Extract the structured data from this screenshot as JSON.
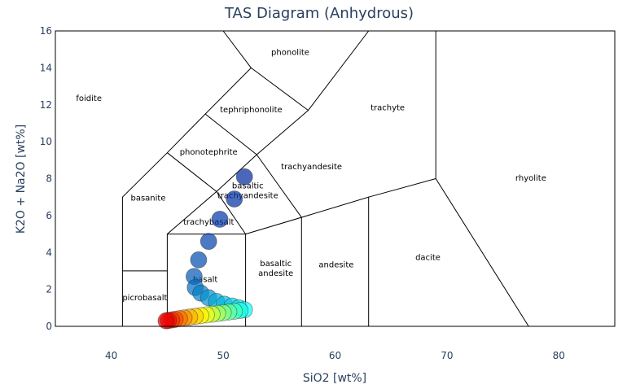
{
  "chart_data": {
    "type": "scatter",
    "title": "TAS Diagram (Anhydrous)",
    "xlabel": "SiO2 [wt%]",
    "ylabel": "K2O + Na2O [wt%]",
    "xlim": [
      35,
      85
    ],
    "ylim": [
      0,
      16
    ],
    "x_ticks": [
      40,
      50,
      60,
      70,
      80
    ],
    "y_ticks": [
      0,
      2,
      4,
      6,
      8,
      10,
      12,
      14,
      16
    ],
    "grid": false,
    "legend": "none",
    "colorscale": "jet",
    "regions": [
      {
        "name": "foidite",
        "label": "foidite",
        "x": 38,
        "y": 12.2
      },
      {
        "name": "phonolite",
        "label": "phonolite",
        "x": 56,
        "y": 14.7
      },
      {
        "name": "tephriphonolite",
        "label": "tephriphonolite",
        "x": 52.5,
        "y": 11.6
      },
      {
        "name": "trachyte",
        "label": "trachyte",
        "x": 64.7,
        "y": 11.7
      },
      {
        "name": "phonotephrite",
        "label": "phonotephrite",
        "x": 48.7,
        "y": 9.3
      },
      {
        "name": "trachyandesite",
        "label": "trachyandesite",
        "x": 57.9,
        "y": 8.5
      },
      {
        "name": "rhyolite",
        "label": "rhyolite",
        "x": 77.5,
        "y": 7.9
      },
      {
        "name": "basanite",
        "label": "basanite",
        "x": 43.3,
        "y": 6.8
      },
      {
        "name": "basaltic-trachyandesite",
        "label": "basaltic\ntrachyandesite",
        "x": 52.2,
        "y": 7.2
      },
      {
        "name": "trachybasalt",
        "label": "trachybasalt",
        "x": 48.7,
        "y": 5.5
      },
      {
        "name": "andesite",
        "label": "andesite",
        "x": 60.1,
        "y": 3.2
      },
      {
        "name": "dacite",
        "label": "dacite",
        "x": 68.3,
        "y": 3.6
      },
      {
        "name": "basaltic-andesite",
        "label": "basaltic\nandesite",
        "x": 54.7,
        "y": 3.0
      },
      {
        "name": "basalt",
        "label": "basalt",
        "x": 48.4,
        "y": 2.4
      },
      {
        "name": "picrobasalt",
        "label": "picrobasalt",
        "x": 43.0,
        "y": 1.4
      }
    ],
    "boundaries": [
      [
        [
          41,
          0
        ],
        [
          41,
          7
        ],
        [
          45,
          9.4
        ],
        [
          48.4,
          11.5
        ],
        [
          52.5,
          14
        ],
        [
          57.6,
          11.7
        ],
        [
          63,
          16
        ]
      ],
      [
        [
          41,
          3
        ],
        [
          45,
          3
        ],
        [
          45,
          0
        ]
      ],
      [
        [
          45,
          3
        ],
        [
          45,
          5
        ],
        [
          49.4,
          7.3
        ],
        [
          53,
          9.3
        ],
        [
          57.6,
          11.7
        ]
      ],
      [
        [
          45,
          5
        ],
        [
          52,
          5
        ],
        [
          52,
          0
        ]
      ],
      [
        [
          52,
          5
        ],
        [
          57,
          5.9
        ],
        [
          57,
          0
        ]
      ],
      [
        [
          57,
          5.9
        ],
        [
          63,
          7
        ],
        [
          63,
          0
        ]
      ],
      [
        [
          63,
          7
        ],
        [
          69,
          8
        ],
        [
          69,
          16
        ]
      ],
      [
        [
          69,
          8
        ],
        [
          77.3,
          0
        ]
      ],
      [
        [
          45,
          9.4
        ],
        [
          49.4,
          7.3
        ]
      ],
      [
        [
          48.4,
          11.5
        ],
        [
          53,
          9.3
        ]
      ],
      [
        [
          52.5,
          14
        ],
        [
          50,
          16
        ]
      ],
      [
        [
          49.4,
          7.3
        ],
        [
          52,
          5
        ]
      ],
      [
        [
          53,
          9.3
        ],
        [
          57,
          5.9
        ]
      ]
    ],
    "points": [
      {
        "x": 51.9,
        "y": 8.1,
        "t": 0.0
      },
      {
        "x": 51.0,
        "y": 6.9,
        "t": 0.02
      },
      {
        "x": 49.7,
        "y": 5.8,
        "t": 0.04
      },
      {
        "x": 48.7,
        "y": 4.6,
        "t": 0.06
      },
      {
        "x": 47.8,
        "y": 3.6,
        "t": 0.08
      },
      {
        "x": 47.4,
        "y": 2.7,
        "t": 0.1
      },
      {
        "x": 47.5,
        "y": 2.1,
        "t": 0.13
      },
      {
        "x": 48.0,
        "y": 1.8,
        "t": 0.16
      },
      {
        "x": 48.7,
        "y": 1.55,
        "t": 0.19
      },
      {
        "x": 49.4,
        "y": 1.35,
        "t": 0.22
      },
      {
        "x": 50.1,
        "y": 1.2,
        "t": 0.25
      },
      {
        "x": 50.8,
        "y": 1.1,
        "t": 0.28
      },
      {
        "x": 51.4,
        "y": 1.0,
        "t": 0.31
      },
      {
        "x": 51.9,
        "y": 0.9,
        "t": 0.35
      },
      {
        "x": 51.5,
        "y": 0.86,
        "t": 0.4
      },
      {
        "x": 51.0,
        "y": 0.82,
        "t": 0.44
      },
      {
        "x": 50.5,
        "y": 0.78,
        "t": 0.48
      },
      {
        "x": 50.0,
        "y": 0.74,
        "t": 0.52
      },
      {
        "x": 49.5,
        "y": 0.7,
        "t": 0.56
      },
      {
        "x": 49.0,
        "y": 0.66,
        "t": 0.6
      },
      {
        "x": 48.5,
        "y": 0.62,
        "t": 0.64
      },
      {
        "x": 48.0,
        "y": 0.58,
        "t": 0.68
      },
      {
        "x": 47.5,
        "y": 0.54,
        "t": 0.72
      },
      {
        "x": 47.0,
        "y": 0.5,
        "t": 0.76
      },
      {
        "x": 46.5,
        "y": 0.46,
        "t": 0.8
      },
      {
        "x": 46.1,
        "y": 0.42,
        "t": 0.84
      },
      {
        "x": 45.7,
        "y": 0.38,
        "t": 0.88
      },
      {
        "x": 45.4,
        "y": 0.35,
        "t": 0.92
      },
      {
        "x": 45.1,
        "y": 0.32,
        "t": 0.96
      },
      {
        "x": 44.9,
        "y": 0.3,
        "t": 1.0
      }
    ]
  }
}
